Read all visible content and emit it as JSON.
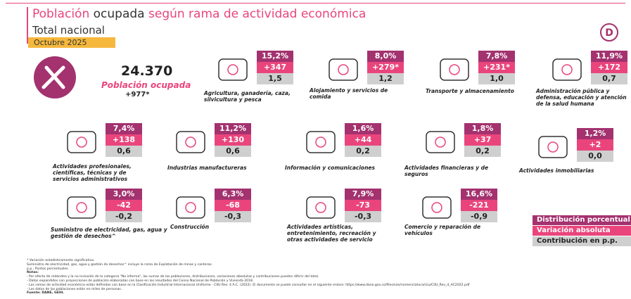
{
  "header": {
    "title": [
      "Población",
      "ocupada",
      "según rama de actividad económica"
    ],
    "subtitle": "Total nacional",
    "period": "Octubre 2025"
  },
  "summary": {
    "value": "24.370",
    "label": "Población ocupada",
    "change": "+977*"
  },
  "sectors": [
    {
      "name": "Agricultura, ganadería, caza, silvicultura y pesca",
      "share": "15,2%",
      "change": "+347",
      "contribution": "1,5"
    },
    {
      "name": "Alojamiento y servicios de comida",
      "share": "8,0%",
      "change": "+279*",
      "contribution": "1,2"
    },
    {
      "name": "Transporte y almacenamiento",
      "share": "7,8%",
      "change": "+231*",
      "contribution": "1,0"
    },
    {
      "name": "Administración pública y defensa, educación y atención de la salud humana",
      "share": "11,9%",
      "change": "+172",
      "contribution": "0,7"
    },
    {
      "name": "Actividades profesionales, científicas, técnicas y de servicios administrativos",
      "share": "7,4%",
      "change": "+138",
      "contribution": "0,6"
    },
    {
      "name": "Industrias manufactureras",
      "share": "11,2%",
      "change": "+130",
      "contribution": "0,6"
    },
    {
      "name": "Información y comunicaciones",
      "share": "1,6%",
      "change": "+44",
      "contribution": "0,2"
    },
    {
      "name": "Actividades financieras y de seguros",
      "share": "1,8%",
      "change": "+37",
      "contribution": "0,2"
    },
    {
      "name": "Actividades inmobiliarias",
      "share": "1,2%",
      "change": "+2",
      "contribution": "0,0"
    },
    {
      "name": "Suministro de electricidad, gas, agua y gestión de desechos^",
      "share": "3,0%",
      "change": "-42",
      "contribution": "-0,2"
    },
    {
      "name": "Construcción",
      "share": "6,3%",
      "change": "-68",
      "contribution": "-0,3"
    },
    {
      "name": "Actividades artísticas, entretenimiento, recreación y otras actividades de servicio",
      "share": "7,9%",
      "change": "-73",
      "contribution": "-0,3"
    },
    {
      "name": "Comercio y reparación de vehículos",
      "share": "16,6%",
      "change": "-221",
      "contribution": "-0,9"
    }
  ],
  "legend": [
    "Distribución porcentual",
    "Variación absoluta",
    "Contribución en p.p."
  ],
  "footnotes": [
    "* Variación estadísticamente significativa.",
    "Suministro de electricidad, gas, agua y gestión de desechos^ incluye la rama de Explotación de minas y canteras.",
    "p.p.: Puntos porcentuales.",
    "Notas:",
    "- Por efecto de redondeo y la no inclusión de la categoría \"No informa\", las sumas de las poblaciones, distribuciones, variaciones absolutas y contribuciones pueden diferir del total.",
    "- Datos expandidos con proyecciones de población elaboradas con base en los resultados del Censo Nacional de Población y Vivienda 2018.",
    "- Las ramas de actividad económica están definidas con base en la Clasificación Industrial Internacional Uniforme - CIIU Rev. 4 A.C. (2022). El documento se puede consultar en el siguiente enlace: https://www.dane.gov.co/files/sen/nomenclatura/ciiu/CIIU_Rev_4_AC2022.pdf",
    "- Los datos de las poblaciones están en miles de personas.",
    "Fuente: DANE, GEIH."
  ]
}
